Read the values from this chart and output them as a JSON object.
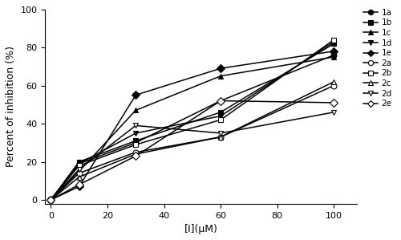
{
  "x": [
    0,
    10,
    30,
    60,
    100
  ],
  "series": [
    {
      "label": "1a",
      "marker": "o",
      "filled": true,
      "values": [
        0,
        19,
        30,
        52,
        76
      ]
    },
    {
      "label": "1b",
      "marker": "s",
      "filled": true,
      "values": [
        0,
        20,
        31,
        46,
        82
      ]
    },
    {
      "label": "1c",
      "marker": "^",
      "filled": true,
      "values": [
        0,
        15,
        47,
        65,
        75
      ]
    },
    {
      "label": "1d",
      "marker": "v",
      "filled": true,
      "values": [
        0,
        19,
        35,
        44,
        83
      ]
    },
    {
      "label": "1e",
      "marker": "D",
      "filled": true,
      "values": [
        0,
        7,
        55,
        69,
        78
      ]
    },
    {
      "label": "2a",
      "marker": "o",
      "filled": false,
      "values": [
        0,
        14,
        25,
        33,
        60
      ]
    },
    {
      "label": "2b",
      "marker": "s",
      "filled": false,
      "values": [
        0,
        18,
        29,
        42,
        84
      ]
    },
    {
      "label": "2c",
      "marker": "^",
      "filled": false,
      "values": [
        0,
        12,
        24,
        33,
        62
      ]
    },
    {
      "label": "2d",
      "marker": "v",
      "filled": false,
      "values": [
        0,
        16,
        39,
        35,
        46
      ]
    },
    {
      "label": "2e",
      "marker": "D",
      "filled": false,
      "values": [
        0,
        8,
        23,
        52,
        51
      ]
    }
  ],
  "xlabel": "[I](μM)",
  "ylabel": "Percent of inhibition (%)",
  "xlim": [
    -2,
    108
  ],
  "ylim": [
    -2,
    100
  ],
  "xticks": [
    0,
    20,
    40,
    60,
    80,
    100
  ],
  "yticks": [
    0,
    20,
    40,
    60,
    80,
    100
  ],
  "line_color": "black",
  "markersize": 5,
  "linewidth": 1.1,
  "figsize": [
    5.0,
    2.99
  ],
  "dpi": 100
}
